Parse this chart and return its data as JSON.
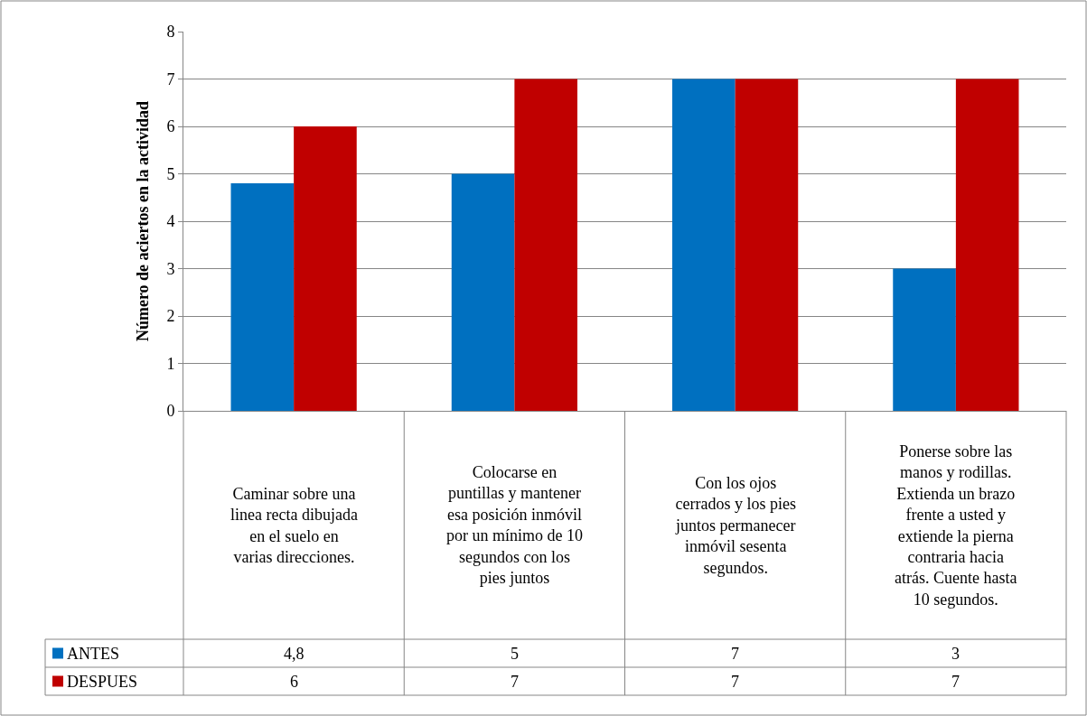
{
  "chart_data": {
    "type": "bar",
    "ylabel": "Número de aciertos en la actividad",
    "categories": [
      "Caminar sobre una linea recta dibujada en el suelo en varias direcciones.",
      "Colocarse en puntillas y mantener esa posición inmóvil por un mínimo de 10 segundos con los pies juntos",
      "Con los ojos cerrados y los pies juntos permanecer inmóvil sesenta segundos.",
      "Ponerse sobre las manos y rodillas. Extienda un brazo frente a usted y extiende la pierna contraria hacia atrás. Cuente hasta 10 segundos."
    ],
    "series": [
      {
        "name": "ANTES",
        "color": "#0070c0",
        "values": [
          4.8,
          5,
          7,
          3
        ],
        "value_labels": [
          "4,8",
          "5",
          "7",
          "3"
        ]
      },
      {
        "name": "DESPUES",
        "color": "#c00000",
        "values": [
          6,
          7,
          7,
          7
        ],
        "value_labels": [
          "6",
          "7",
          "7",
          "7"
        ]
      }
    ],
    "ylim": [
      0,
      8
    ],
    "yticks": [
      0,
      1,
      2,
      3,
      4,
      5,
      6,
      7,
      8
    ],
    "grid": "y",
    "legend": "bottom left"
  }
}
